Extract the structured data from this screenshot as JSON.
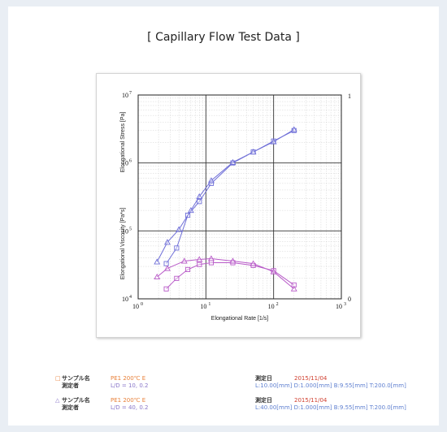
{
  "chart_data": {
    "type": "scatter",
    "title": "[ Capillary Flow Test Data ]",
    "xlabel": "Elongational Rate [1/s]",
    "ylabel_stress": "Elongational Stress [Pa]",
    "ylabel_viscosity": "Elongational Viscosity [Pa*s]",
    "x_scale": "log",
    "y_scale": "log",
    "xlim": [
      1,
      1000
    ],
    "ylim": [
      10000,
      10000000
    ],
    "x_ticks": [
      "10",
      "10",
      "10",
      "10"
    ],
    "x_tick_exps": [
      "0",
      "1",
      "2",
      "3"
    ],
    "y_ticks": [
      "10",
      "10",
      "10",
      "10"
    ],
    "y_tick_exps": [
      "4",
      "5",
      "6",
      "7"
    ],
    "right_ticks": [
      "1",
      "0"
    ],
    "grid": true,
    "series": [
      {
        "marker": "square",
        "color": "#7070d8",
        "x": [
          2.6,
          3.7,
          5.4,
          8,
          12,
          25,
          50,
          100,
          200
        ],
        "y": [
          33000,
          56000,
          170000,
          270000,
          500000,
          1000000,
          1450000,
          2100000,
          3000000
        ]
      },
      {
        "marker": "triangle",
        "color": "#7070d8",
        "x": [
          1.9,
          2.7,
          4,
          6,
          8,
          12,
          25,
          50,
          100,
          200
        ],
        "y": [
          35000,
          68000,
          105000,
          200000,
          320000,
          550000,
          1020000,
          1450000,
          2050000,
          3100000
        ]
      },
      {
        "marker": "square",
        "color": "#b85ac8",
        "x": [
          2.6,
          3.7,
          5.4,
          8,
          12,
          25,
          50,
          100,
          200
        ],
        "y": [
          14000,
          20000,
          27000,
          32000,
          34000,
          34000,
          31000,
          26000,
          16000
        ]
      },
      {
        "marker": "triangle",
        "color": "#b85ac8",
        "x": [
          1.9,
          2.7,
          4.8,
          8,
          12,
          25,
          50,
          100,
          200
        ],
        "y": [
          21000,
          28000,
          36000,
          38000,
          39000,
          36000,
          33000,
          25000,
          14000
        ]
      }
    ]
  },
  "legend": {
    "row1": {
      "marker": "□",
      "sample_label": "サンプル名",
      "sample_value": "PE1 200℃ E",
      "measurer_label": "測定者",
      "ld_value": "L/D = 10, 0.2",
      "date_label": "測定日",
      "date_value": "2015/11/04",
      "spec_value": "L:10.00[mm] D:1.000[mm] B:9.55[mm] T:200.0[mm]"
    },
    "row2": {
      "marker": "△",
      "sample_label": "サンプル名",
      "sample_value": "PE1 200℃ E",
      "measurer_label": "測定者",
      "ld_value": "L/D = 40, 0.2",
      "date_label": "測定日",
      "date_value": "2015/11/04",
      "spec_value": "L:40.00[mm] D:1.000[mm] B:9.55[mm] T:200.0[mm]"
    }
  }
}
